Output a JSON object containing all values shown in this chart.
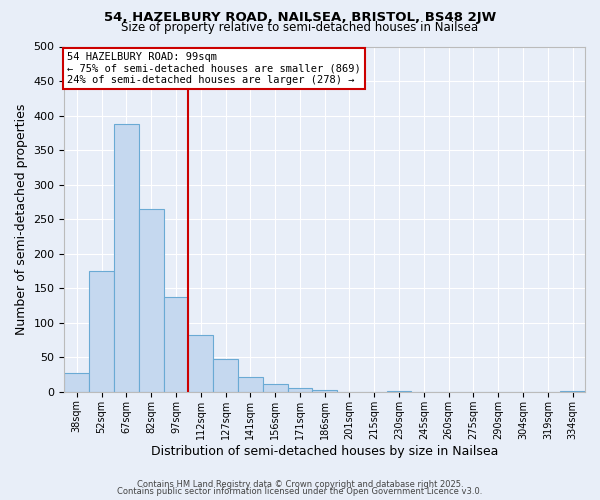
{
  "title1": "54, HAZELBURY ROAD, NAILSEA, BRISTOL, BS48 2JW",
  "title2": "Size of property relative to semi-detached houses in Nailsea",
  "xlabel": "Distribution of semi-detached houses by size in Nailsea",
  "ylabel": "Number of semi-detached properties",
  "bar_labels": [
    "38sqm",
    "52sqm",
    "67sqm",
    "82sqm",
    "97sqm",
    "112sqm",
    "127sqm",
    "141sqm",
    "156sqm",
    "171sqm",
    "186sqm",
    "201sqm",
    "215sqm",
    "230sqm",
    "245sqm",
    "260sqm",
    "275sqm",
    "290sqm",
    "304sqm",
    "319sqm",
    "334sqm"
  ],
  "bar_values": [
    27,
    175,
    388,
    265,
    137,
    82,
    48,
    21,
    11,
    5,
    3,
    0,
    0,
    1,
    0,
    0,
    0,
    0,
    0,
    0,
    1
  ],
  "bar_color": "#c5d8ef",
  "bar_edge_color": "#6aaad4",
  "background_color": "#e8eef8",
  "vline_x": 4.5,
  "vline_color": "#cc0000",
  "annotation_title": "54 HAZELBURY ROAD: 99sqm",
  "annotation_line1": "← 75% of semi-detached houses are smaller (869)",
  "annotation_line2": "24% of semi-detached houses are larger (278) →",
  "annotation_box_facecolor": "#ffffff",
  "annotation_box_edgecolor": "#cc0000",
  "ylim": [
    0,
    500
  ],
  "yticks": [
    0,
    50,
    100,
    150,
    200,
    250,
    300,
    350,
    400,
    450,
    500
  ],
  "footer1": "Contains HM Land Registry data © Crown copyright and database right 2025.",
  "footer2": "Contains public sector information licensed under the Open Government Licence v3.0."
}
